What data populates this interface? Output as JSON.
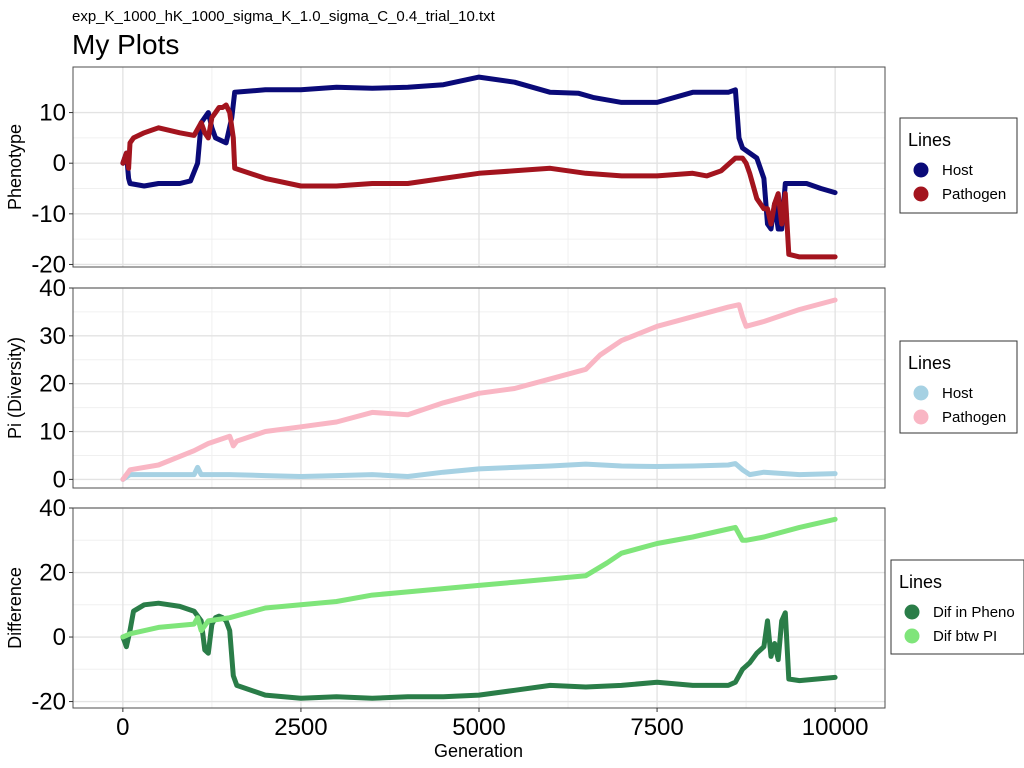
{
  "subtitle": "exp_K_1000_hK_1000_sigma_K_1.0_sigma_C_0.4_trial_10.txt",
  "title": "My Plots",
  "xlabel": "Generation",
  "chart_data": [
    {
      "type": "line",
      "ylabel": "Phenotype",
      "xlim": [
        -700,
        10700
      ],
      "ylim": [
        -20.5,
        19
      ],
      "y_ticks": [
        10,
        0,
        -10,
        -20
      ],
      "y_tick_labels": [
        "10",
        "0",
        "-10",
        "-20"
      ],
      "grid": true,
      "legend": {
        "title": "Lines",
        "position": "right"
      },
      "series": [
        {
          "name": "Host",
          "color": "#0a0a78",
          "x": [
            0,
            50,
            80,
            100,
            300,
            500,
            800,
            950,
            1050,
            1100,
            1200,
            1250,
            1300,
            1450,
            1530,
            1570,
            2000,
            2500,
            3000,
            3500,
            4000,
            4500,
            5000,
            5500,
            6000,
            6400,
            6600,
            7000,
            7500,
            8000,
            8500,
            8600,
            8650,
            8700,
            8800,
            8900,
            9000,
            9050,
            9100,
            9150,
            9200,
            9250,
            9300,
            9400,
            9600,
            9800,
            10000
          ],
          "y": [
            0,
            2,
            -3,
            -4,
            -4.5,
            -4,
            -4,
            -3.5,
            0,
            8,
            10,
            7,
            5,
            4,
            9,
            14,
            14.5,
            14.5,
            15,
            14.8,
            15,
            15.5,
            17,
            16,
            14,
            13.8,
            13,
            12,
            12,
            14,
            14,
            14.5,
            5,
            3,
            2,
            1,
            -3,
            -12,
            -13,
            -8,
            -13,
            -13,
            -4,
            -4,
            -4,
            -5,
            -5.8
          ]
        },
        {
          "name": "Pathogen",
          "color": "#a3141e",
          "x": [
            0,
            50,
            80,
            100,
            150,
            300,
            500,
            800,
            1000,
            1100,
            1150,
            1200,
            1250,
            1300,
            1350,
            1400,
            1450,
            1500,
            1550,
            1570,
            2000,
            2500,
            3000,
            3500,
            4000,
            4500,
            5000,
            5500,
            6000,
            6500,
            7000,
            7500,
            8000,
            8200,
            8400,
            8600,
            8700,
            8750,
            8800,
            8900,
            9000,
            9050,
            9100,
            9150,
            9200,
            9250,
            9300,
            9350,
            9500,
            9700,
            10000
          ],
          "y": [
            0,
            2,
            -1,
            4,
            5,
            6,
            7,
            6,
            5.5,
            8,
            6,
            5,
            9,
            10,
            11,
            11,
            11.5,
            10,
            5,
            -1,
            -3,
            -4.5,
            -4.5,
            -4,
            -4,
            -3,
            -2,
            -1.5,
            -1,
            -2,
            -2.5,
            -2.5,
            -2,
            -2.5,
            -1.5,
            1,
            1,
            0,
            -2,
            -7,
            -9,
            -9,
            -12,
            -8,
            -6,
            -12,
            -6,
            -18,
            -18.5,
            -18.5,
            -18.5
          ]
        }
      ]
    },
    {
      "type": "line",
      "ylabel": "Pi (Diversity)",
      "xlim": [
        -700,
        10700
      ],
      "ylim": [
        -1.8,
        40
      ],
      "y_ticks": [
        40,
        30,
        20,
        10,
        0
      ],
      "y_tick_labels": [
        "40",
        "30",
        "20",
        "10",
        "0"
      ],
      "grid": true,
      "legend": {
        "title": "Lines",
        "position": "right"
      },
      "series": [
        {
          "name": "Host",
          "color": "#a6d1e3",
          "x": [
            0,
            100,
            500,
            1000,
            1050,
            1100,
            1150,
            1500,
            2000,
            2500,
            3000,
            3500,
            4000,
            4500,
            5000,
            5500,
            6000,
            6500,
            7000,
            7500,
            8000,
            8500,
            8600,
            8700,
            8800,
            9000,
            9500,
            10000
          ],
          "y": [
            0,
            1,
            1,
            1,
            2.5,
            1,
            1,
            1,
            0.8,
            0.6,
            0.8,
            1,
            0.6,
            1.5,
            2.2,
            2.5,
            2.8,
            3.2,
            2.8,
            2.7,
            2.8,
            3,
            3.3,
            2,
            1,
            1.5,
            1,
            1.2
          ]
        },
        {
          "name": "Pathogen",
          "color": "#f9b6c4",
          "x": [
            0,
            100,
            500,
            1000,
            1200,
            1500,
            1550,
            1600,
            2000,
            2500,
            3000,
            3500,
            4000,
            4500,
            5000,
            5500,
            6000,
            6500,
            6700,
            7000,
            7500,
            8000,
            8500,
            8650,
            8700,
            8750,
            9000,
            9500,
            10000
          ],
          "y": [
            0,
            2,
            3,
            6,
            7.5,
            9,
            7,
            8,
            10,
            11,
            12,
            14,
            13.5,
            16,
            18,
            19,
            21,
            23,
            26,
            29,
            32,
            34,
            36,
            36.5,
            34,
            32,
            33,
            35.5,
            37.5
          ]
        }
      ]
    },
    {
      "type": "line",
      "ylabel": "Difference",
      "xlim": [
        -700,
        10700
      ],
      "ylim": [
        -22,
        40
      ],
      "y_ticks": [
        40,
        20,
        0,
        -20
      ],
      "y_tick_labels": [
        "40",
        "20",
        "0",
        "-20"
      ],
      "grid": true,
      "legend": {
        "title": "Lines",
        "position": "right"
      },
      "series": [
        {
          "name": "Dif in Pheno",
          "color": "#2a7d48",
          "x": [
            0,
            50,
            100,
            150,
            300,
            500,
            800,
            1000,
            1100,
            1150,
            1200,
            1250,
            1300,
            1350,
            1400,
            1450,
            1500,
            1550,
            1600,
            2000,
            2500,
            3000,
            3500,
            4000,
            4500,
            5000,
            5500,
            6000,
            6500,
            7000,
            7500,
            8000,
            8500,
            8600,
            8700,
            8800,
            8900,
            9000,
            9050,
            9100,
            9150,
            9200,
            9250,
            9300,
            9350,
            9500,
            10000
          ],
          "y": [
            0,
            -3,
            2,
            8,
            10,
            10.5,
            9.5,
            8,
            5,
            -4,
            -5,
            4,
            6,
            6.5,
            6,
            5,
            2,
            -12,
            -15,
            -18,
            -19,
            -18.5,
            -19,
            -18.5,
            -18.5,
            -18,
            -16.5,
            -15,
            -15.5,
            -15,
            -14,
            -15,
            -15,
            -14,
            -10,
            -8,
            -5,
            -3,
            5,
            -6,
            -2,
            -7,
            5,
            7.5,
            -13,
            -13.5,
            -12.5
          ]
        },
        {
          "name": "Dif btw PI",
          "color": "#7fe57a",
          "x": [
            0,
            100,
            500,
            1000,
            1050,
            1100,
            1200,
            1500,
            2000,
            2500,
            3000,
            3500,
            4000,
            4500,
            5000,
            5500,
            6000,
            6500,
            6800,
            7000,
            7500,
            8000,
            8500,
            8600,
            8700,
            8750,
            9000,
            9500,
            10000
          ],
          "y": [
            0,
            1,
            3,
            4,
            6,
            2,
            5,
            6,
            9,
            10,
            11,
            13,
            14,
            15,
            16,
            17,
            18,
            19,
            23,
            26,
            29,
            31,
            33.5,
            34,
            30,
            30,
            31,
            34,
            36.5
          ]
        }
      ]
    }
  ],
  "x_ticks": [
    0,
    2500,
    5000,
    7500,
    10000
  ],
  "x_tick_labels": [
    "0",
    "2500",
    "5000",
    "7500",
    "10000"
  ]
}
